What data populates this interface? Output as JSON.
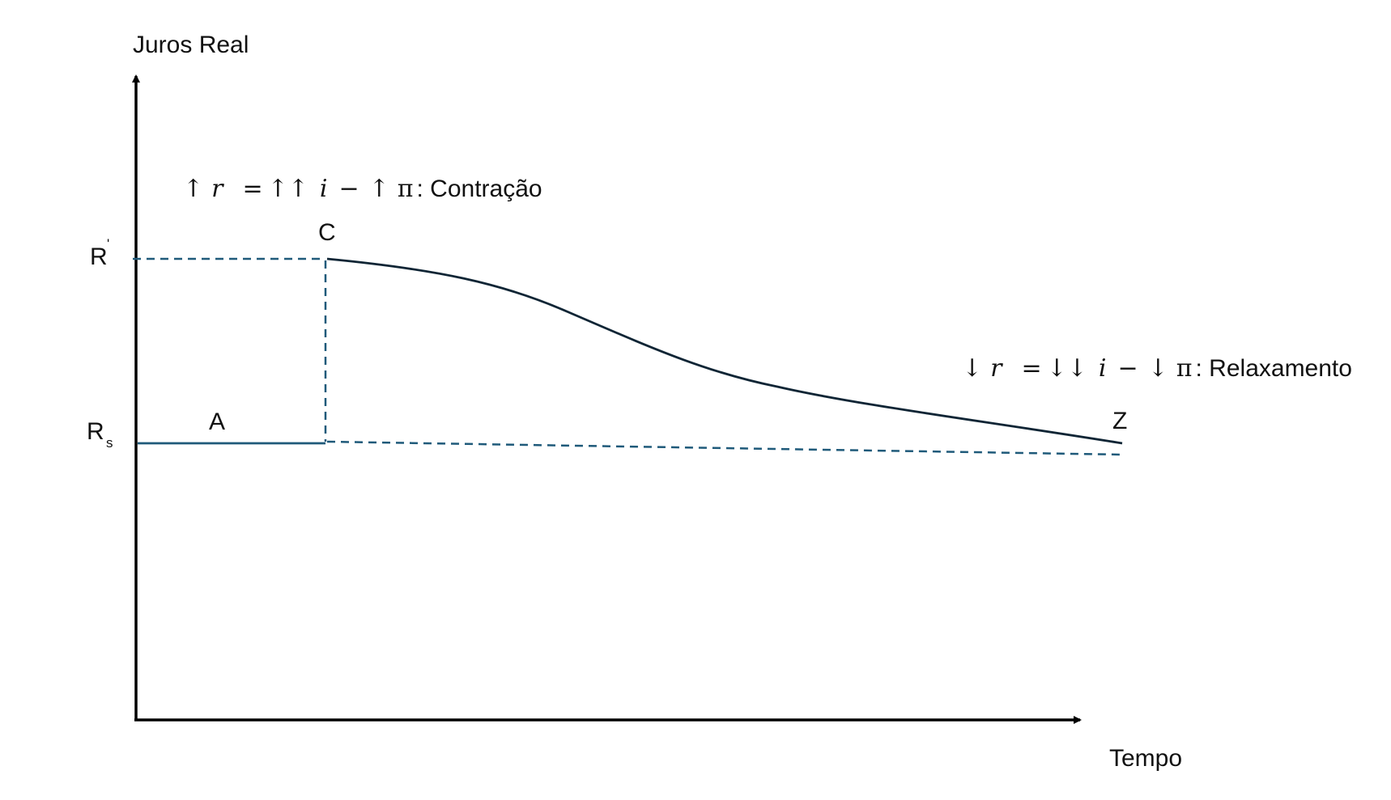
{
  "axes": {
    "y_label": "Juros Real",
    "x_label": "Tempo"
  },
  "levels": {
    "upper_label": "R",
    "upper_mark": "'",
    "lower_label": "R",
    "lower_subscript": "s"
  },
  "points": {
    "a": "A",
    "c": "C",
    "z": "Z"
  },
  "annotations": {
    "contraction": {
      "arrow_r": "↑",
      "r": "r",
      "eq": "=",
      "arrow_i": "↑↑",
      "i": "i",
      "minus": "−",
      "arrow_pi": "↑",
      "pi": "π",
      "text": ": Contração"
    },
    "relaxation": {
      "arrow_r": "↓",
      "r": "r",
      "eq": "=",
      "arrow_i": "↓↓",
      "i": "i",
      "minus": "−",
      "arrow_pi": "↓",
      "pi": "π",
      "text": ": Relaxamento"
    }
  },
  "colors": {
    "axis": "#000000",
    "line_blue": "#1f5a7a",
    "curve_dark": "#0f2535"
  }
}
